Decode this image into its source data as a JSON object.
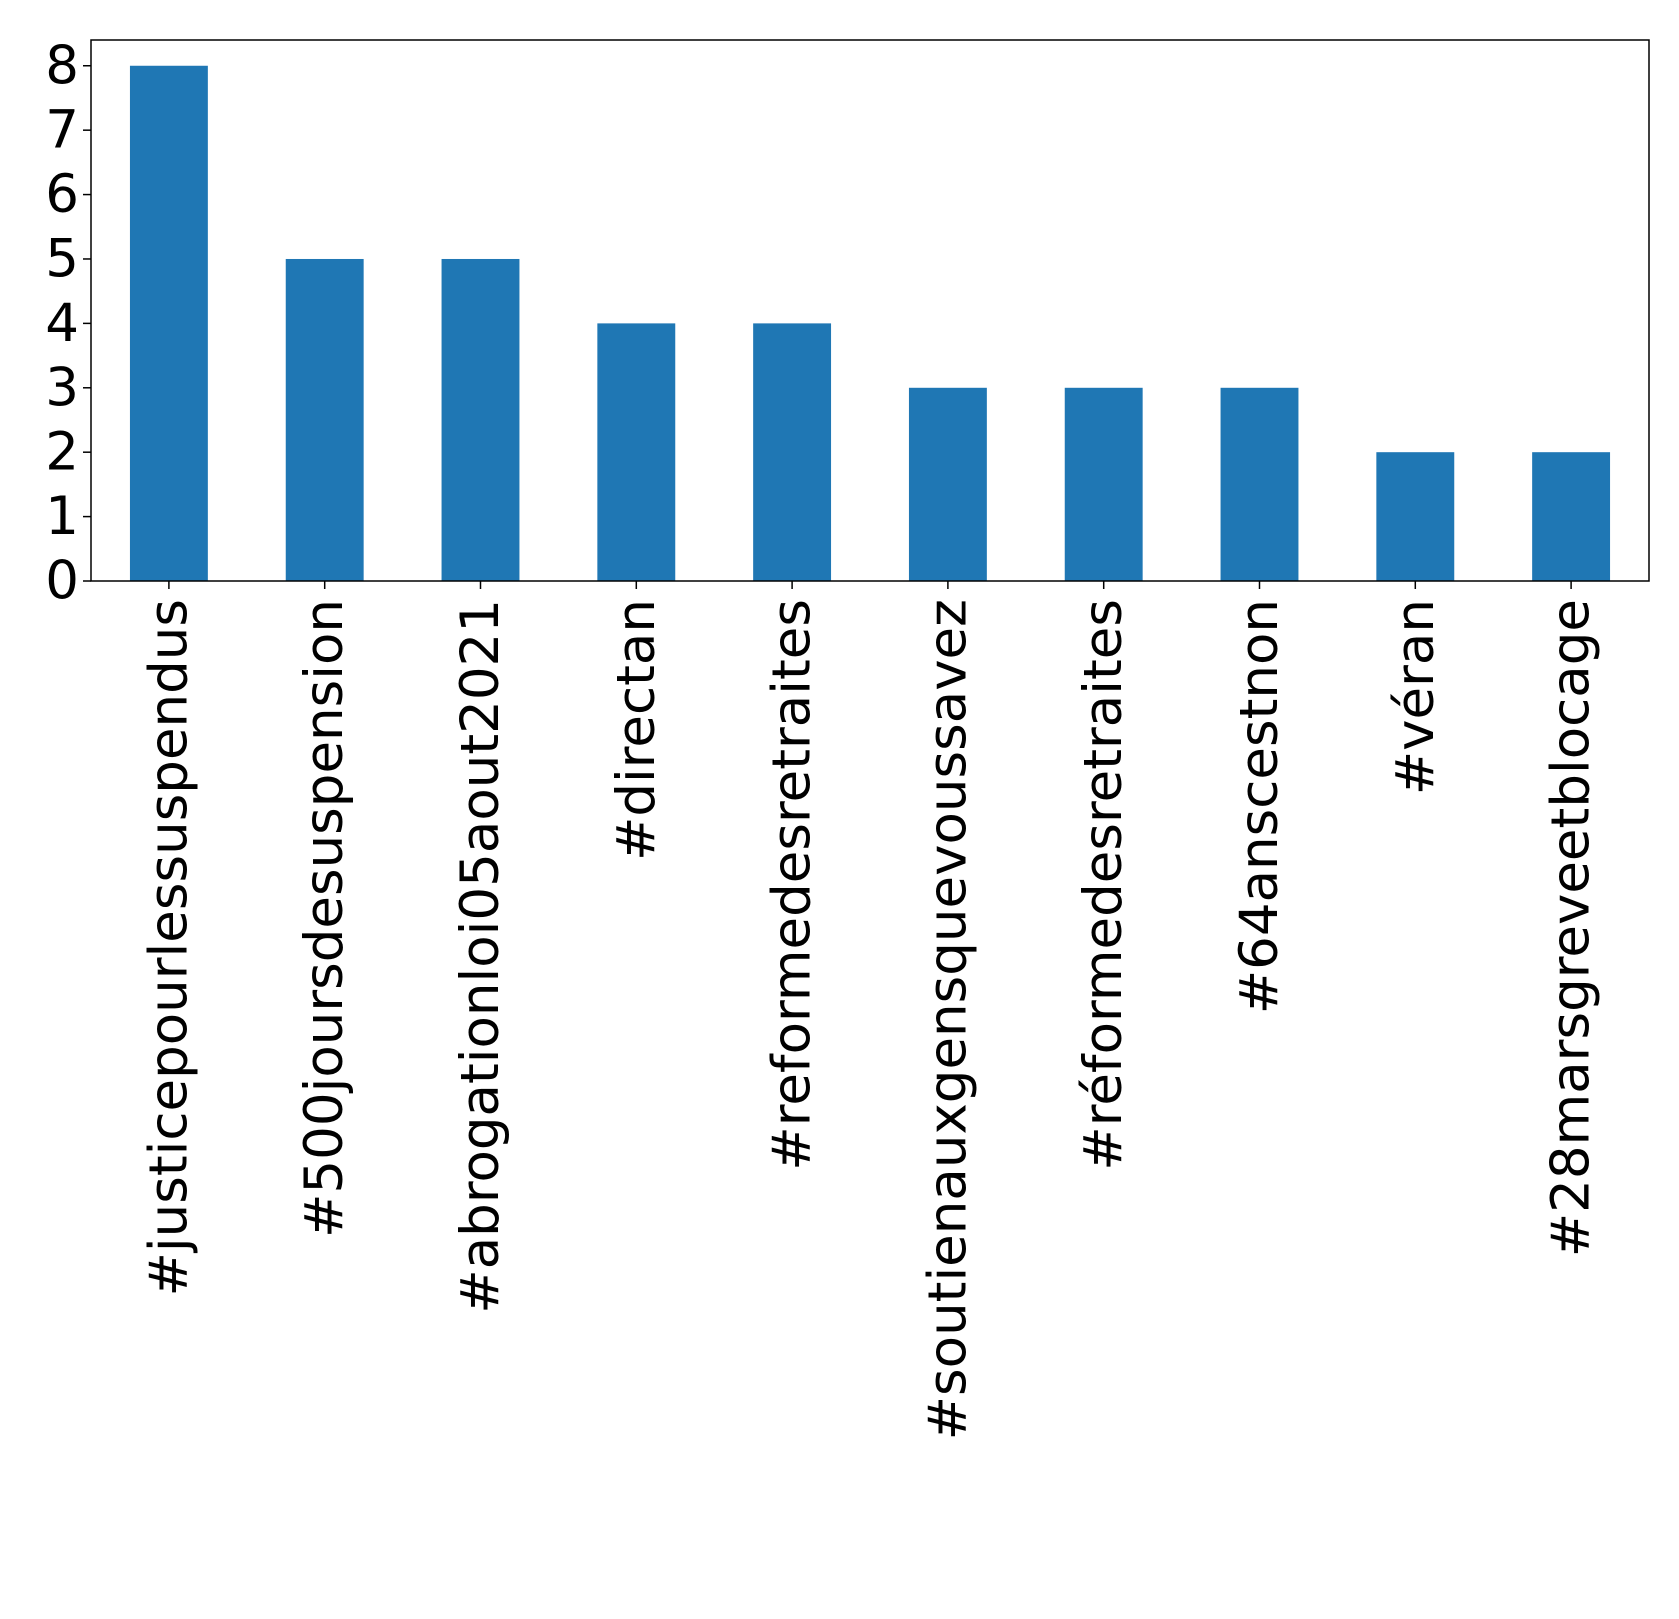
{
  "chart_data": {
    "type": "bar",
    "title": "",
    "xlabel": "",
    "ylabel": "",
    "categories": [
      "#justicepourlessuspendus",
      "#500joursdesuspension",
      "#abrogationloi05aout2021",
      "#directan",
      "#reformedesretraites",
      "#soutienauxgensquevoussavez",
      "#réformedesretraites",
      "#64anscestnon",
      "#véran",
      "#28marsgreveetblocage"
    ],
    "values": [
      8,
      5,
      5,
      4,
      4,
      3,
      3,
      3,
      2,
      2
    ],
    "ylim": [
      0,
      8.4
    ],
    "yticks": [
      "0",
      "1",
      "2",
      "3",
      "4",
      "5",
      "6",
      "7",
      "8"
    ],
    "bar_color": "#1f77b4",
    "grid": false,
    "legend": "none"
  }
}
